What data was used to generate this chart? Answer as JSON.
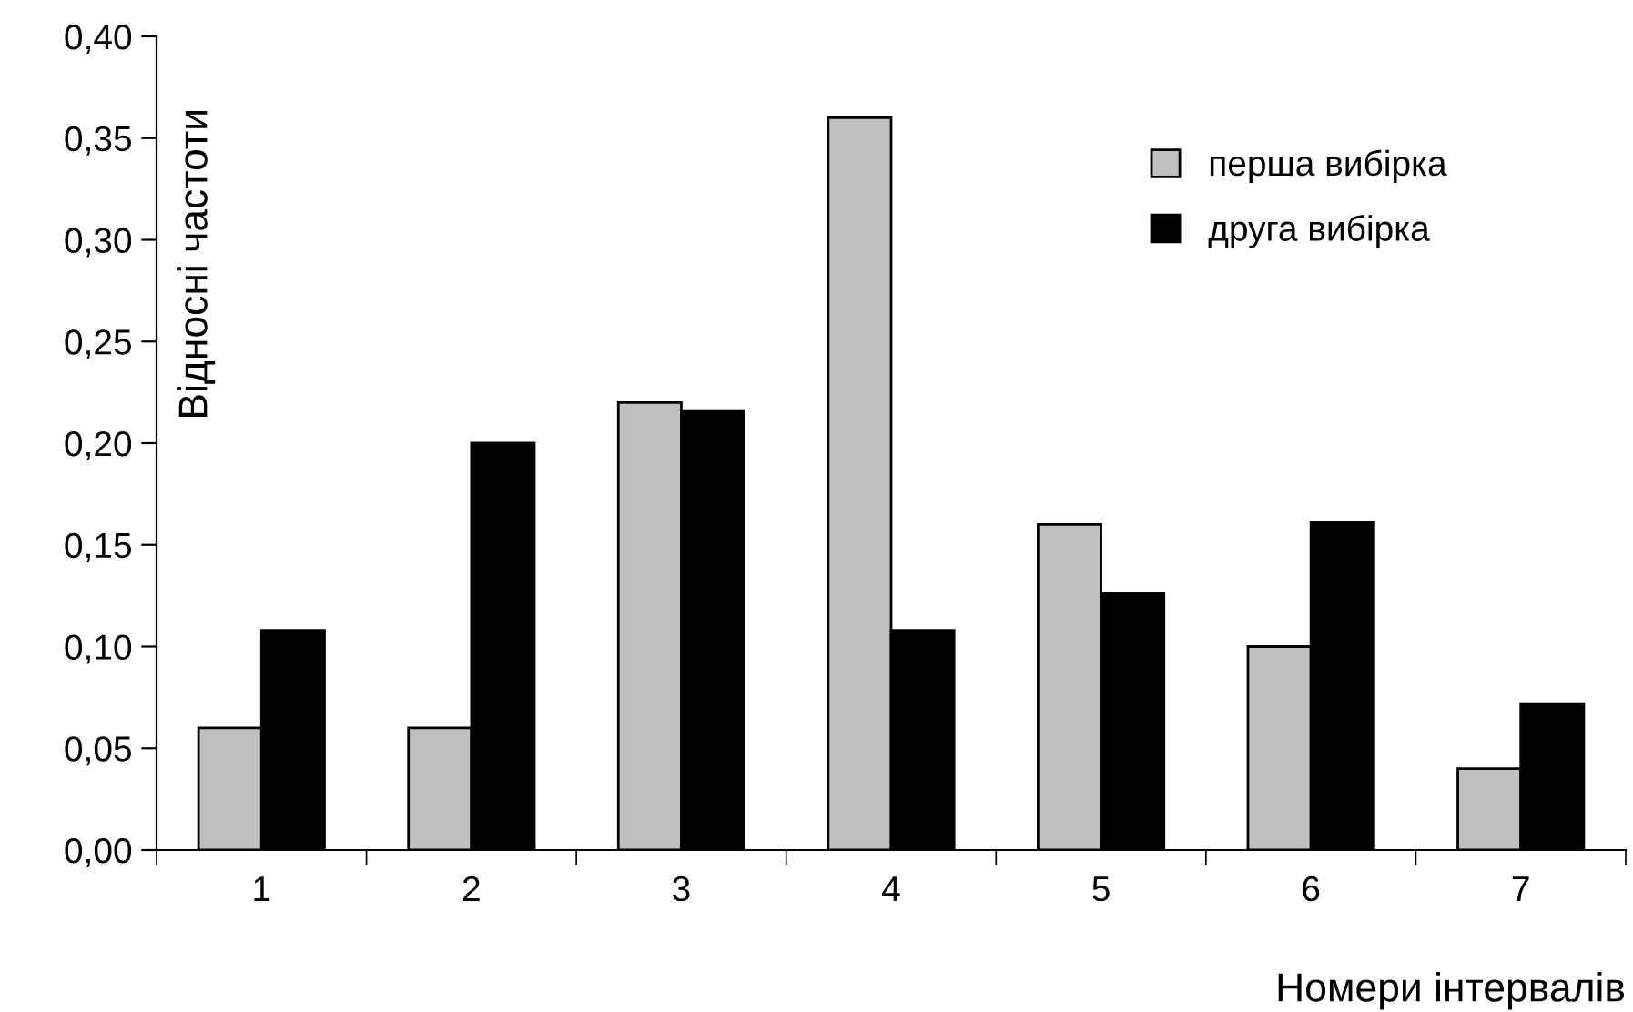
{
  "chart_data": {
    "type": "bar",
    "ylabel": "Відносні частоти",
    "xlabel": "Номери інтервалів",
    "categories": [
      "1",
      "2",
      "3",
      "4",
      "5",
      "6",
      "7"
    ],
    "series": [
      {
        "name": "перша вибірка",
        "color": "#c0c0c0",
        "values": [
          0.06,
          0.06,
          0.22,
          0.36,
          0.16,
          0.1,
          0.04
        ]
      },
      {
        "name": "друга вибірка",
        "color": "#000000",
        "values": [
          0.108,
          0.2,
          0.216,
          0.108,
          0.126,
          0.161,
          0.072
        ]
      }
    ],
    "ylim": [
      0,
      0.4
    ],
    "yticks": [
      {
        "value": 0,
        "label": "0,00"
      },
      {
        "value": 0.05,
        "label": "0,05"
      },
      {
        "value": 0.1,
        "label": "0,10"
      },
      {
        "value": 0.15,
        "label": "0,15"
      },
      {
        "value": 0.2,
        "label": "0,20"
      },
      {
        "value": 0.25,
        "label": "0,25"
      },
      {
        "value": 0.3,
        "label": "0,30"
      },
      {
        "value": 0.35,
        "label": "0,35"
      },
      {
        "value": 0.4,
        "label": "0,40"
      }
    ],
    "grid": false,
    "legend": "top right"
  }
}
